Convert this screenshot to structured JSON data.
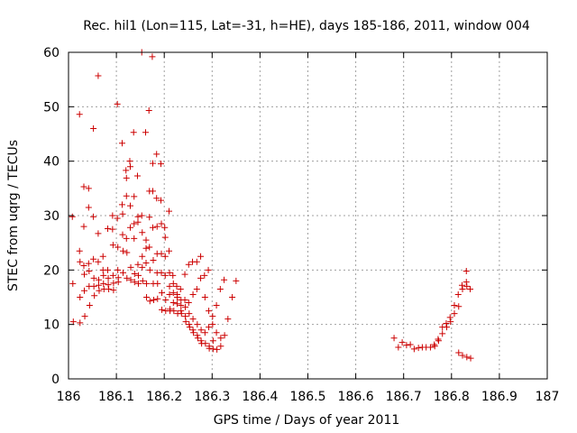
{
  "chart_data": {
    "type": "scatter",
    "title": "Rec. hil1 (Lon=115, Lat=-31, h=HE), days 185-186, 2011, window 004",
    "xlabel": "GPS time / Days of year 2011",
    "ylabel": "STEC from uqrg / TECUs",
    "xlim": [
      186,
      187
    ],
    "ylim": [
      0,
      60
    ],
    "xticks": [
      "186",
      "186.1",
      "186.2",
      "186.3",
      "186.4",
      "186.5",
      "186.6",
      "186.7",
      "186.8",
      "186.9",
      "187"
    ],
    "yticks": [
      "0",
      "10",
      "20",
      "30",
      "40",
      "50",
      "60"
    ],
    "grid": true,
    "marker": "plus",
    "color": "#cc0000",
    "series": [
      {
        "points": [
          [
            186.008,
            29.8
          ],
          [
            186.009,
            17.5
          ],
          [
            186.01,
            10.5
          ],
          [
            186.023,
            48.6
          ],
          [
            186.023,
            23.5
          ],
          [
            186.024,
            21.5
          ],
          [
            186.024,
            15.0
          ],
          [
            186.024,
            10.3
          ],
          [
            186.032,
            35.3
          ],
          [
            186.032,
            28.0
          ],
          [
            186.032,
            20.8
          ],
          [
            186.033,
            19.2
          ],
          [
            186.033,
            16.2
          ],
          [
            186.034,
            11.5
          ],
          [
            186.042,
            35.0
          ],
          [
            186.042,
            31.5
          ],
          [
            186.042,
            21.2
          ],
          [
            186.043,
            19.8
          ],
          [
            186.043,
            17.0
          ],
          [
            186.044,
            13.5
          ],
          [
            186.052,
            46.0
          ],
          [
            186.052,
            29.8
          ],
          [
            186.052,
            22.0
          ],
          [
            186.053,
            18.5
          ],
          [
            186.053,
            17.0
          ],
          [
            186.054,
            15.3
          ],
          [
            186.062,
            55.7
          ],
          [
            186.062,
            26.7
          ],
          [
            186.062,
            21.5
          ],
          [
            186.063,
            18.2
          ],
          [
            186.063,
            17.2
          ],
          [
            186.064,
            16.2
          ],
          [
            186.072,
            22.5
          ],
          [
            186.072,
            20.0
          ],
          [
            186.073,
            19.0
          ],
          [
            186.073,
            17.5
          ],
          [
            186.074,
            16.5
          ],
          [
            186.082,
            27.6
          ],
          [
            186.082,
            20.0
          ],
          [
            186.083,
            18.5
          ],
          [
            186.083,
            17.3
          ],
          [
            186.084,
            16.5
          ],
          [
            186.092,
            30.0
          ],
          [
            186.092,
            27.5
          ],
          [
            186.093,
            24.6
          ],
          [
            186.093,
            19.0
          ],
          [
            186.094,
            17.6
          ],
          [
            186.094,
            16.3
          ],
          [
            186.102,
            50.5
          ],
          [
            186.102,
            29.5
          ],
          [
            186.103,
            24.2
          ],
          [
            186.103,
            20.0
          ],
          [
            186.104,
            18.6
          ],
          [
            186.104,
            17.8
          ],
          [
            186.112,
            43.3
          ],
          [
            186.112,
            32.0
          ],
          [
            186.113,
            30.3
          ],
          [
            186.113,
            26.5
          ],
          [
            186.114,
            23.5
          ],
          [
            186.114,
            19.5
          ],
          [
            186.12,
            38.3
          ],
          [
            186.121,
            36.9
          ],
          [
            186.121,
            33.6
          ],
          [
            186.121,
            25.8
          ],
          [
            186.122,
            23.2
          ],
          [
            186.122,
            18.5
          ],
          [
            186.128,
            40.0
          ],
          [
            186.129,
            39.0
          ],
          [
            186.129,
            31.8
          ],
          [
            186.129,
            27.8
          ],
          [
            186.13,
            20.5
          ],
          [
            186.13,
            18.2
          ],
          [
            186.136,
            45.3
          ],
          [
            186.137,
            33.5
          ],
          [
            186.137,
            28.5
          ],
          [
            186.137,
            25.8
          ],
          [
            186.138,
            19.3
          ],
          [
            186.138,
            17.8
          ],
          [
            186.144,
            37.3
          ],
          [
            186.145,
            29.8
          ],
          [
            186.145,
            28.8
          ],
          [
            186.145,
            21.0
          ],
          [
            186.146,
            19.0
          ],
          [
            186.146,
            17.5
          ],
          [
            186.153,
            60.0
          ],
          [
            186.153,
            30.0
          ],
          [
            186.154,
            26.9
          ],
          [
            186.154,
            22.5
          ],
          [
            186.154,
            20.5
          ],
          [
            186.155,
            18.0
          ],
          [
            186.161,
            45.3
          ],
          [
            186.162,
            25.5
          ],
          [
            186.162,
            24.0
          ],
          [
            186.162,
            21.3
          ],
          [
            186.163,
            17.5
          ],
          [
            186.163,
            15.0
          ],
          [
            186.168,
            49.3
          ],
          [
            186.169,
            34.5
          ],
          [
            186.169,
            29.7
          ],
          [
            186.169,
            24.2
          ],
          [
            186.17,
            20.0
          ],
          [
            186.17,
            14.3
          ],
          [
            186.175,
            59.2
          ],
          [
            186.176,
            39.6
          ],
          [
            186.176,
            34.5
          ],
          [
            186.176,
            27.8
          ],
          [
            186.177,
            21.8
          ],
          [
            186.177,
            17.5
          ],
          [
            186.178,
            14.5
          ],
          [
            186.184,
            41.3
          ],
          [
            186.184,
            33.2
          ],
          [
            186.185,
            28.0
          ],
          [
            186.185,
            23.0
          ],
          [
            186.185,
            19.5
          ],
          [
            186.186,
            17.5
          ],
          [
            186.186,
            14.7
          ],
          [
            186.193,
            39.5
          ],
          [
            186.193,
            32.8
          ],
          [
            186.194,
            28.5
          ],
          [
            186.194,
            23.0
          ],
          [
            186.194,
            19.5
          ],
          [
            186.195,
            15.8
          ],
          [
            186.195,
            12.7
          ],
          [
            186.201,
            27.8
          ],
          [
            186.202,
            26.0
          ],
          [
            186.202,
            22.5
          ],
          [
            186.202,
            19.0
          ],
          [
            186.203,
            14.5
          ],
          [
            186.203,
            12.5
          ],
          [
            186.21,
            30.8
          ],
          [
            186.21,
            23.5
          ],
          [
            186.211,
            19.5
          ],
          [
            186.211,
            17.0
          ],
          [
            186.211,
            15.5
          ],
          [
            186.212,
            12.8
          ],
          [
            186.212,
            12.5
          ],
          [
            186.218,
            19.0
          ],
          [
            186.219,
            17.5
          ],
          [
            186.219,
            15.8
          ],
          [
            186.219,
            14.0
          ],
          [
            186.22,
            12.5
          ],
          [
            186.226,
            17.0
          ],
          [
            186.227,
            15.5
          ],
          [
            186.227,
            15.0
          ],
          [
            186.227,
            13.8
          ],
          [
            186.228,
            12.0
          ],
          [
            186.234,
            16.5
          ],
          [
            186.235,
            14.5
          ],
          [
            186.235,
            13.5
          ],
          [
            186.235,
            12.5
          ],
          [
            186.236,
            12.0
          ],
          [
            186.243,
            19.2
          ],
          [
            186.243,
            14.5
          ],
          [
            186.244,
            13.2
          ],
          [
            186.244,
            11.5
          ],
          [
            186.245,
            10.5
          ],
          [
            186.251,
            21.0
          ],
          [
            186.251,
            14.0
          ],
          [
            186.252,
            12.0
          ],
          [
            186.252,
            10.0
          ],
          [
            186.253,
            9.5
          ],
          [
            186.259,
            21.5
          ],
          [
            186.26,
            15.5
          ],
          [
            186.26,
            11.0
          ],
          [
            186.26,
            9.0
          ],
          [
            186.261,
            8.5
          ],
          [
            186.268,
            21.5
          ],
          [
            186.268,
            16.5
          ],
          [
            186.269,
            10.0
          ],
          [
            186.269,
            8.0
          ],
          [
            186.27,
            7.5
          ],
          [
            186.276,
            22.5
          ],
          [
            186.276,
            18.5
          ],
          [
            186.277,
            9.0
          ],
          [
            186.277,
            7.0
          ],
          [
            186.278,
            6.5
          ],
          [
            186.284,
            19.0
          ],
          [
            186.285,
            15.0
          ],
          [
            186.285,
            8.5
          ],
          [
            186.286,
            6.5
          ],
          [
            186.292,
            20.0
          ],
          [
            186.293,
            12.5
          ],
          [
            186.293,
            9.5
          ],
          [
            186.294,
            6.0
          ],
          [
            186.294,
            5.6
          ],
          [
            186.301,
            11.5
          ],
          [
            186.301,
            10.0
          ],
          [
            186.302,
            7.0
          ],
          [
            186.302,
            5.5
          ],
          [
            186.309,
            13.5
          ],
          [
            186.309,
            8.5
          ],
          [
            186.31,
            5.4
          ],
          [
            186.317,
            16.5
          ],
          [
            186.318,
            7.5
          ],
          [
            186.318,
            6.0
          ],
          [
            186.325,
            18.2
          ],
          [
            186.326,
            8.0
          ],
          [
            186.333,
            11.0
          ],
          [
            186.342,
            15.0
          ],
          [
            186.35,
            18.0
          ],
          [
            186.68,
            7.5
          ],
          [
            186.689,
            5.8
          ],
          [
            186.697,
            6.7
          ],
          [
            186.706,
            6.2
          ],
          [
            186.714,
            6.3
          ],
          [
            186.722,
            5.5
          ],
          [
            186.731,
            5.7
          ],
          [
            186.739,
            5.8
          ],
          [
            186.747,
            5.8
          ],
          [
            186.756,
            5.8
          ],
          [
            186.764,
            6.3
          ],
          [
            186.765,
            6.0
          ],
          [
            186.772,
            7.3
          ],
          [
            186.773,
            7.0
          ],
          [
            186.781,
            9.5
          ],
          [
            186.781,
            8.3
          ],
          [
            186.789,
            10.2
          ],
          [
            186.79,
            9.5
          ],
          [
            186.797,
            11.3
          ],
          [
            186.798,
            10.5
          ],
          [
            186.806,
            13.5
          ],
          [
            186.806,
            12.0
          ],
          [
            186.814,
            15.5
          ],
          [
            186.815,
            13.3
          ],
          [
            186.815,
            4.8
          ],
          [
            186.822,
            17.2
          ],
          [
            186.823,
            16.5
          ],
          [
            186.823,
            4.3
          ],
          [
            186.831,
            19.8
          ],
          [
            186.831,
            17.8
          ],
          [
            186.832,
            17.0
          ],
          [
            186.832,
            4.0
          ],
          [
            186.839,
            16.5
          ],
          [
            186.84,
            3.8
          ]
        ]
      }
    ]
  }
}
